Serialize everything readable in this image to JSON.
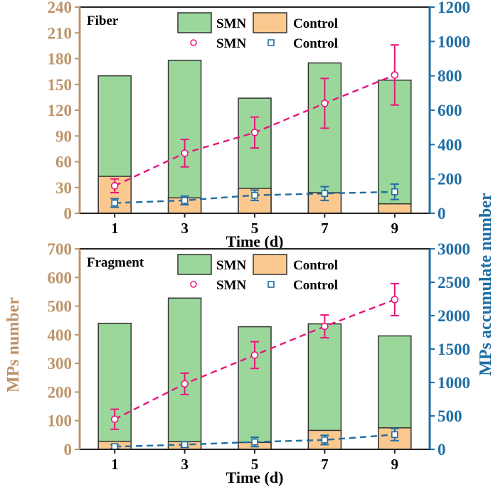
{
  "figure": {
    "left_ylabel": "MPs number",
    "right_ylabel": "MPs accumulate number",
    "colors": {
      "left_axis": "#bd946b",
      "right_axis": "#1f6ea3",
      "smn_bar": "#9bd79b",
      "control_bar": "#fbc98f",
      "smn_line": "#e8167d",
      "control_line": "#1f6ea3",
      "frame": "#222222"
    }
  },
  "chart_data": [
    {
      "type": "bar",
      "panel_label": "Fiber",
      "xlabel": "Time (d)",
      "categories": [
        "1",
        "3",
        "5",
        "7",
        "9"
      ],
      "ylim_left": [
        0,
        240
      ],
      "yticks_left": [
        "0",
        "30",
        "60",
        "90",
        "120",
        "150",
        "180",
        "210",
        "240"
      ],
      "ylim_right": [
        0,
        1200
      ],
      "yticks_right": [
        "0",
        "200",
        "400",
        "600",
        "800",
        "1000",
        "1200"
      ],
      "bar_series": [
        {
          "name": "SMN",
          "values": [
            160,
            178,
            134,
            175,
            155
          ]
        },
        {
          "name": "Control",
          "values": [
            43,
            18,
            29,
            24,
            11
          ]
        }
      ],
      "line_series": [
        {
          "name": "SMN",
          "marker": "circle",
          "values": [
            160,
            350,
            470,
            640,
            805
          ],
          "err": [
            40,
            80,
            90,
            145,
            175
          ]
        },
        {
          "name": "Control",
          "marker": "square",
          "values": [
            60,
            75,
            105,
            115,
            125
          ],
          "err": [
            25,
            25,
            30,
            40,
            45
          ]
        }
      ]
    },
    {
      "type": "bar",
      "panel_label": "Fragment",
      "xlabel": "Time (d)",
      "categories": [
        "1",
        "3",
        "5",
        "7",
        "9"
      ],
      "ylim_left": [
        0,
        700
      ],
      "yticks_left": [
        "0",
        "100",
        "200",
        "300",
        "400",
        "500",
        "600",
        "700"
      ],
      "ylim_right": [
        0,
        3000
      ],
      "yticks_right": [
        "0",
        "500",
        "1000",
        "1500",
        "2000",
        "2500",
        "3000"
      ],
      "bar_series": [
        {
          "name": "SMN",
          "values": [
            440,
            528,
            428,
            438,
            396
          ]
        },
        {
          "name": "Control",
          "values": [
            28,
            27,
            24,
            66,
            75
          ]
        }
      ],
      "line_series": [
        {
          "name": "SMN",
          "marker": "circle",
          "values": [
            450,
            980,
            1410,
            1840,
            2240
          ],
          "err": [
            150,
            160,
            200,
            170,
            240
          ]
        },
        {
          "name": "Control",
          "marker": "square",
          "values": [
            40,
            70,
            110,
            140,
            220
          ],
          "err": [
            30,
            40,
            70,
            70,
            90
          ]
        }
      ]
    }
  ]
}
